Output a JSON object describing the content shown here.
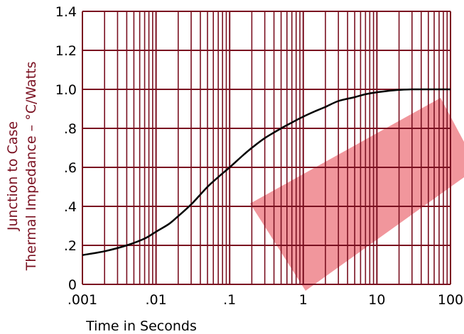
{
  "chart_data": {
    "type": "line",
    "title": "",
    "x_scale": "log",
    "xlim": [
      0.001,
      100
    ],
    "ylim": [
      0,
      1.4
    ],
    "grid": true,
    "xlabel": "Time in Seconds",
    "ylabel_lines": [
      "Junction to Case",
      "Thermal Impedance – °C/Watts"
    ],
    "x_ticks": [
      {
        "value": 0.001,
        "label": ".001"
      },
      {
        "value": 0.01,
        "label": ".01"
      },
      {
        "value": 0.1,
        "label": ".1"
      },
      {
        "value": 1,
        "label": "1"
      },
      {
        "value": 10,
        "label": "10"
      },
      {
        "value": 100,
        "label": "100"
      }
    ],
    "y_ticks": [
      {
        "value": 0,
        "label": "0"
      },
      {
        "value": 0.2,
        "label": ".2"
      },
      {
        "value": 0.4,
        "label": ".4"
      },
      {
        "value": 0.6,
        "label": ".6"
      },
      {
        "value": 0.8,
        "label": ".8"
      },
      {
        "value": 1.0,
        "label": "1.0"
      },
      {
        "value": 1.2,
        "label": "1.2"
      },
      {
        "value": 1.4,
        "label": "1.4"
      }
    ],
    "series": [
      {
        "x": [
          0.001,
          0.002,
          0.004,
          0.007,
          0.01,
          0.015,
          0.02,
          0.03,
          0.05,
          0.07,
          0.1,
          0.15,
          0.2,
          0.3,
          0.5,
          0.7,
          1,
          1.5,
          2,
          3,
          5,
          7,
          10,
          15,
          20,
          30,
          50,
          100
        ],
        "values": [
          0.15,
          0.17,
          0.2,
          0.235,
          0.27,
          0.31,
          0.35,
          0.41,
          0.5,
          0.55,
          0.6,
          0.66,
          0.7,
          0.75,
          0.8,
          0.83,
          0.86,
          0.89,
          0.91,
          0.94,
          0.96,
          0.975,
          0.985,
          0.993,
          0.997,
          1.0,
          1.0,
          1.0
        ]
      }
    ]
  },
  "colors": {
    "grid": "#7a1020",
    "curve": "#000000",
    "ylabel": "#7a1020",
    "watermark": "#e8505a"
  }
}
